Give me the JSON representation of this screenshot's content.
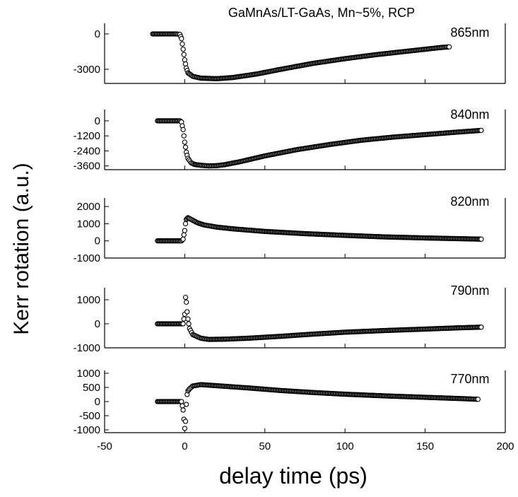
{
  "chart_data": {
    "type": "scatter",
    "title": "GaMnAs/LT-GaAs, Mn~5%, RCP",
    "xlabel": "delay time (ps)",
    "ylabel": "Kerr rotation (a.u.)",
    "xlim": [
      -50,
      200
    ],
    "x_ticks": [
      -50,
      0,
      50,
      100,
      150,
      200
    ],
    "x_tick_labels": [
      "-50",
      "0",
      "50",
      "100",
      "150",
      "200"
    ],
    "panels": [
      {
        "label": "865nm",
        "ylim": [
          -4200,
          900
        ],
        "y_ticks": [
          0,
          -3000
        ],
        "y_tick_labels": [
          "0",
          "-3000"
        ],
        "x": [
          -20,
          -5,
          -3,
          -2,
          -1,
          0,
          1,
          2,
          5,
          10,
          20,
          30,
          45,
          60,
          80,
          100,
          120,
          140,
          160,
          165
        ],
        "values": [
          0,
          0,
          -50,
          -400,
          -1300,
          -2200,
          -2900,
          -3300,
          -3600,
          -3750,
          -3800,
          -3700,
          -3400,
          -3000,
          -2500,
          -2100,
          -1750,
          -1450,
          -1150,
          -1100
        ]
      },
      {
        "label": "840nm",
        "ylim": [
          -3900,
          900
        ],
        "y_ticks": [
          0,
          -1200,
          -2400,
          -3600
        ],
        "y_tick_labels": [
          "0",
          "-1200",
          "-2400",
          "-3600"
        ],
        "x": [
          -17,
          -3,
          -2,
          -1,
          0,
          1,
          2,
          4,
          6,
          10,
          15,
          20,
          25,
          35,
          50,
          70,
          90,
          110,
          130,
          150,
          170,
          185
        ],
        "values": [
          0,
          0,
          -100,
          -700,
          -1700,
          -2500,
          -3000,
          -3350,
          -3480,
          -3550,
          -3600,
          -3580,
          -3500,
          -3250,
          -2800,
          -2300,
          -1900,
          -1550,
          -1300,
          -1100,
          -900,
          -760
        ]
      },
      {
        "label": "820nm",
        "ylim": [
          -1000,
          2500
        ],
        "y_ticks": [
          2000,
          1000,
          0,
          -1000
        ],
        "y_tick_labels": [
          "2000",
          "1000",
          "0",
          "-1000"
        ],
        "x": [
          -17,
          -2,
          -1,
          0,
          0.5,
          1,
          2,
          3,
          5,
          8,
          12,
          20,
          30,
          50,
          75,
          100,
          125,
          150,
          175,
          185
        ],
        "values": [
          0,
          0,
          100,
          600,
          1000,
          1250,
          1350,
          1300,
          1200,
          1050,
          930,
          800,
          700,
          550,
          420,
          320,
          230,
          170,
          120,
          100
        ]
      },
      {
        "label": "790nm",
        "ylim": [
          -1000,
          1500
        ],
        "y_ticks": [
          1000,
          0,
          -1000
        ],
        "y_tick_labels": [
          "1000",
          "0",
          "-1000"
        ],
        "x": [
          -17,
          -1,
          0,
          0.5,
          1,
          1.5,
          2,
          3,
          5,
          10,
          15,
          25,
          40,
          60,
          80,
          100,
          125,
          150,
          170,
          185
        ],
        "values": [
          0,
          0,
          400,
          1100,
          900,
          500,
          200,
          -200,
          -450,
          -600,
          -650,
          -640,
          -600,
          -520,
          -430,
          -350,
          -280,
          -220,
          -170,
          -140
        ]
      },
      {
        "label": "770nm",
        "ylim": [
          -1100,
          1100
        ],
        "y_ticks": [
          1000,
          500,
          0,
          -500,
          -1000
        ],
        "y_tick_labels": [
          "1000",
          "500",
          "0",
          "-500",
          "-1000"
        ],
        "x": [
          -17,
          -2,
          -1,
          0,
          0.5,
          1,
          1.5,
          2,
          3,
          5,
          10,
          20,
          40,
          60,
          80,
          100,
          125,
          150,
          175,
          183
        ],
        "values": [
          0,
          0,
          -300,
          -950,
          -700,
          -100,
          250,
          380,
          450,
          550,
          600,
          560,
          480,
          390,
          320,
          260,
          200,
          150,
          100,
          80
        ]
      }
    ]
  }
}
